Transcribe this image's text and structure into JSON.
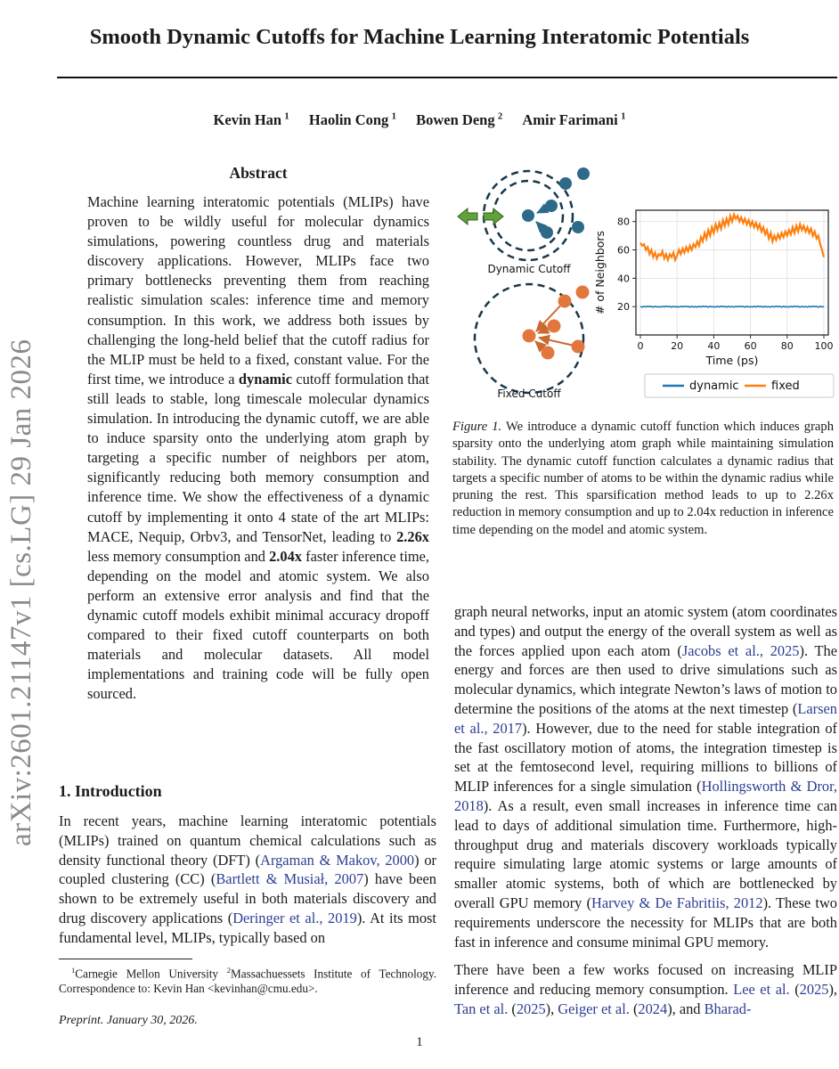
{
  "sidebar": {
    "arxiv_label": "arXiv:2601.21147v1  [cs.LG]  29 Jan 2026"
  },
  "header": {
    "title": "Smooth Dynamic Cutoffs for Machine Learning Interatomic Potentials",
    "authors": [
      {
        "name": "Kevin Han",
        "affiliation": "1"
      },
      {
        "name": "Haolin Cong",
        "affiliation": "1"
      },
      {
        "name": "Bowen Deng",
        "affiliation": "2"
      },
      {
        "name": "Amir Farimani",
        "affiliation": "1"
      }
    ]
  },
  "abstract": {
    "heading": "Abstract",
    "segments": [
      {
        "t": "Machine learning interatomic potentials (MLIPs) have proven to be wildly useful for molecular dynamics simulations, powering countless drug and materials discovery applications. However, MLIPs face two primary bottlenecks preventing them from reaching realistic simulation scales: inference time and memory consumption. In this work, we address both issues by challenging the long-held belief that the cutoff radius for the MLIP must be held to a fixed, constant value. For the first time, we introduce a "
      },
      {
        "t": "dynamic",
        "b": true
      },
      {
        "t": " cutoff formulation that still leads to stable, long timescale molecular dynamics simulation. In introducing the dynamic cutoff, we are able to induce sparsity onto the underlying atom graph by targeting a specific number of neighbors per atom, significantly reducing both memory consumption and inference time. We show the effectiveness of a dynamic cutoff by implementing it onto 4 state of the art MLIPs: MACE, Nequip, Orbv3, and TensorNet, leading to "
      },
      {
        "t": "2.26x",
        "b": true
      },
      {
        "t": " less memory consumption and "
      },
      {
        "t": "2.04x",
        "b": true
      },
      {
        "t": " faster inference time, depending on the model and atomic system. We also perform an extensive error analysis and find that the dynamic cutoff models exhibit minimal accuracy dropoff compared to their fixed cutoff counterparts on both materials and molecular datasets. All model implementations and training code will be fully open sourced."
      }
    ]
  },
  "introduction": {
    "heading": "1. Introduction",
    "segments": [
      {
        "t": "In recent years, machine learning interatomic potentials (MLIPs) trained on quantum chemical calculations such as density functional theory (DFT) ("
      },
      {
        "t": "Argaman & Makov, 2000",
        "c": true
      },
      {
        "t": ") or coupled clustering (CC) ("
      },
      {
        "t": "Bartlett & Musiał, 2007",
        "c": true
      },
      {
        "t": ") have been shown to be extremely useful in both materials discovery and drug discovery applications ("
      },
      {
        "t": "Deringer et al., 2019",
        "c": true
      },
      {
        "t": "). At its most fundamental level, MLIPs, typically based on"
      }
    ]
  },
  "footnote": {
    "segments": [
      {
        "t": "1",
        "sup": true
      },
      {
        "t": "Carnegie Mellon University "
      },
      {
        "t": "2",
        "sup": true
      },
      {
        "t": "Massachuessets Institute of Technology. Correspondence to: Kevin Han <kevinhan@cmu.edu>."
      }
    ],
    "preprint": "Preprint. January 30, 2026."
  },
  "figure": {
    "dynamic_label": "Dynamic Cutoff",
    "fixed_label": "Fixed Cutoff",
    "colors": {
      "dynamic_atoms": "#2d6a8a",
      "fixed_atoms": "#e2773e",
      "cutoff_circle": "#17384c",
      "radius_arrows": "#61a33b",
      "chart_dynamic": "#1f77b4",
      "chart_fixed": "#ff7f0e"
    },
    "caption_segments": [
      {
        "t": "Figure 1.",
        "i": true
      },
      {
        "t": " We introduce a dynamic cutoff function which induces graph sparsity onto the underlying atom graph while maintaining simulation stability. The dynamic cutoff function calculates a dynamic radius that targets a specific number of atoms to be within the dynamic radius while pruning the rest. This sparsification method leads to up to 2.26x reduction in memory consumption and up to 2.04x reduction in inference time depending on the model and atomic system."
      }
    ]
  },
  "chart_data": {
    "type": "line",
    "xlabel": "Time (ps)",
    "ylabel": "# of Neighbors",
    "xlim": [
      0,
      100
    ],
    "ylim": [
      0,
      88
    ],
    "xticks": [
      0,
      20,
      40,
      60,
      80,
      100
    ],
    "yticks": [
      20,
      40,
      60,
      80
    ],
    "grid": true,
    "legend_position": "below",
    "x_step": 1,
    "series": [
      {
        "name": "dynamic",
        "color": "#1f77b4",
        "values": [
          20,
          19.7,
          20.2,
          19.8,
          20.3,
          19.9,
          20.1,
          19.6,
          20.2,
          19.8,
          20,
          19.7,
          20.2,
          19.8,
          20.3,
          19.9,
          20.1,
          19.6,
          20.2,
          19.8,
          20,
          19.7,
          20.2,
          19.8,
          20.3,
          19.9,
          20.1,
          19.6,
          20.2,
          19.8,
          20,
          19.7,
          20.2,
          19.8,
          20.3,
          19.9,
          20.1,
          19.6,
          20.2,
          19.8,
          20,
          19.7,
          20.2,
          19.8,
          20.3,
          19.9,
          20.1,
          19.6,
          20.2,
          19.8,
          20,
          19.7,
          20.2,
          19.8,
          20.3,
          19.9,
          20.1,
          19.6,
          20.2,
          19.8,
          20,
          19.7,
          20.2,
          19.8,
          20.3,
          19.9,
          20.1,
          19.6,
          20.2,
          19.8,
          20,
          19.7,
          20.2,
          19.8,
          20.3,
          19.9,
          20.1,
          19.6,
          20.2,
          19.8,
          20,
          19.7,
          20.2,
          19.8,
          20.3,
          19.9,
          20.1,
          19.6,
          20.2,
          19.8,
          20,
          19.7,
          20.2,
          19.8,
          20.3,
          19.9,
          20.1,
          19.6,
          20.2,
          19.8,
          20
        ]
      },
      {
        "name": "fixed",
        "color": "#ff7f0e",
        "values": [
          65,
          63,
          64,
          60,
          62,
          57,
          60,
          55,
          58,
          54,
          57,
          56,
          59,
          54,
          57,
          53,
          57,
          55,
          58,
          53,
          56,
          60,
          57,
          61,
          58,
          62,
          59,
          63,
          60,
          64,
          62,
          66,
          63,
          69,
          66,
          72,
          68,
          74,
          70,
          76,
          72,
          78,
          74,
          79,
          75,
          81,
          77,
          82,
          78,
          84,
          80,
          85,
          82,
          84,
          80,
          83,
          79,
          82,
          78,
          81,
          77,
          80,
          76,
          79,
          75,
          78,
          73,
          76,
          71,
          74,
          68,
          72,
          66,
          70,
          67,
          71,
          68,
          72,
          69,
          73,
          70,
          74,
          71,
          76,
          72,
          77,
          73,
          78,
          74,
          77,
          73,
          76,
          72,
          75,
          70,
          73,
          68,
          70,
          64,
          60,
          55
        ]
      }
    ]
  },
  "right_column": {
    "para1_segments": [
      {
        "t": "graph neural networks, input an atomic system (atom coordinates and types) and output the energy of the overall system as well as the forces applied upon each atom ("
      },
      {
        "t": "Jacobs et al., 2025",
        "c": true
      },
      {
        "t": "). The energy and forces are then used to drive simulations such as molecular dynamics, which integrate Newton’s laws of motion to determine the positions of the atoms at the next timestep ("
      },
      {
        "t": "Larsen et al., 2017",
        "c": true
      },
      {
        "t": "). However, due to the need for stable integration of the fast oscillatory motion of atoms, the integration timestep is set at the femtosecond level, requiring millions to billions of MLIP inferences for a single simulation ("
      },
      {
        "t": "Hollingsworth & Dror, 2018",
        "c": true
      },
      {
        "t": "). As a result, even small increases in inference time can lead to days of additional simulation time. Furthermore, high-throughput drug and materials discovery workloads typically require simulating large atomic systems or large amounts of smaller atomic systems, both of which are bottlenecked by overall GPU memory ("
      },
      {
        "t": "Harvey & De Fabritiis, 2012",
        "c": true
      },
      {
        "t": "). These two requirements underscore the necessity for MLIPs that are both fast in inference and consume minimal GPU memory."
      }
    ],
    "para2_segments": [
      {
        "t": "There have been a few works focused on increasing MLIP inference and reducing memory consumption. "
      },
      {
        "t": "Lee et al.",
        "c": true
      },
      {
        "t": " ("
      },
      {
        "t": "2025",
        "c": true
      },
      {
        "t": "), "
      },
      {
        "t": "Tan et al.",
        "c": true
      },
      {
        "t": " ("
      },
      {
        "t": "2025",
        "c": true
      },
      {
        "t": "), "
      },
      {
        "t": "Geiger et al.",
        "c": true
      },
      {
        "t": " ("
      },
      {
        "t": "2024",
        "c": true
      },
      {
        "t": "), and "
      },
      {
        "t": "Bharad-",
        "c": true
      }
    ]
  },
  "footer": {
    "page_number": "1"
  }
}
